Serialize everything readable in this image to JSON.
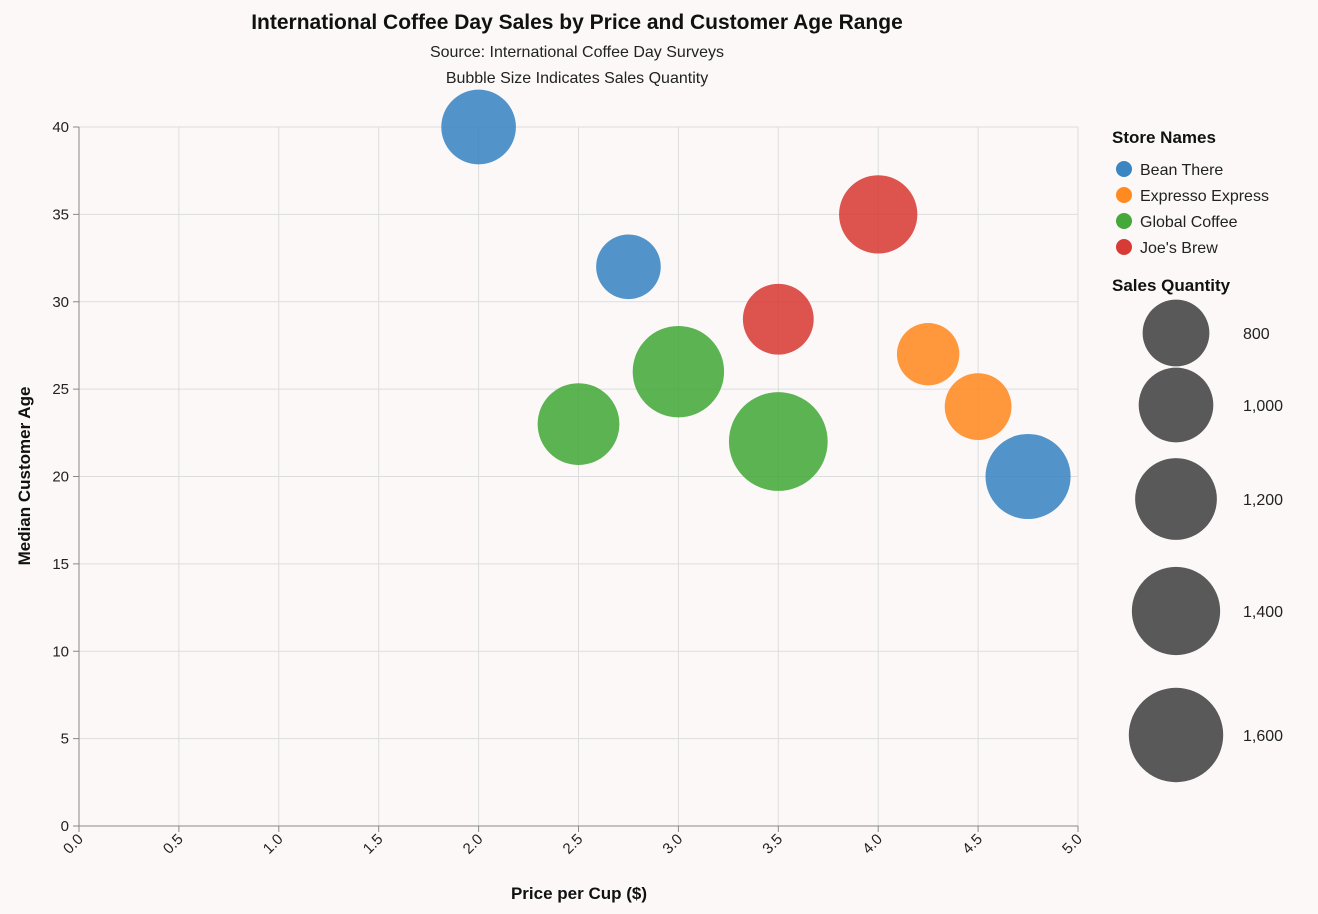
{
  "chart_data": {
    "type": "scatter",
    "title": "International Coffee Day Sales by Price and Customer Age Range",
    "subtitle": [
      "Source: International Coffee Day Surveys",
      "Bubble Size Indicates Sales Quantity"
    ],
    "xlabel": "Price per Cup ($)",
    "ylabel": "Median Customer Age",
    "xlim": [
      0,
      5
    ],
    "ylim": [
      0,
      40
    ],
    "x_ticks": [
      "0.0",
      "0.5",
      "1.0",
      "1.5",
      "2.0",
      "2.5",
      "3.0",
      "3.5",
      "4.0",
      "4.5",
      "5.0"
    ],
    "y_ticks": [
      "0",
      "5",
      "10",
      "15",
      "20",
      "25",
      "30",
      "35",
      "40"
    ],
    "grid": true,
    "series": [
      {
        "name": "Bean There",
        "color": "#3a85c2",
        "points": [
          {
            "x": 2.0,
            "y": 40,
            "size": 1000
          },
          {
            "x": 2.75,
            "y": 32,
            "size": 750
          },
          {
            "x": 4.75,
            "y": 20,
            "size": 1300
          }
        ]
      },
      {
        "name": "Expresso Express",
        "color": "#ff8a22",
        "points": [
          {
            "x": 4.25,
            "y": 27,
            "size": 700
          },
          {
            "x": 4.5,
            "y": 24,
            "size": 800
          }
        ]
      },
      {
        "name": "Global Coffee",
        "color": "#44a83a",
        "points": [
          {
            "x": 2.5,
            "y": 23,
            "size": 1200
          },
          {
            "x": 3.0,
            "y": 26,
            "size": 1500
          },
          {
            "x": 3.5,
            "y": 22,
            "size": 1750
          }
        ]
      },
      {
        "name": "Joe's Brew",
        "color": "#d83b35",
        "points": [
          {
            "x": 3.5,
            "y": 29,
            "size": 900
          },
          {
            "x": 4.0,
            "y": 35,
            "size": 1100
          }
        ]
      }
    ],
    "legend_color_title": "Store Names",
    "legend_size_title": "Sales Quantity",
    "legend_size_values": [
      800,
      1000,
      1200,
      1400,
      1600
    ],
    "legend_size_labels": [
      "800",
      "1,000",
      "1,200",
      "1,400",
      "1,600"
    ],
    "legend_placement": "right"
  }
}
